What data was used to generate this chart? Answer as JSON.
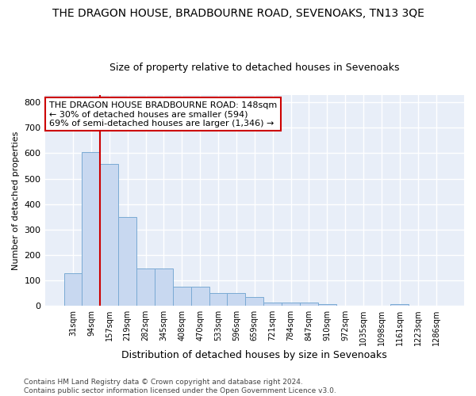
{
  "title": "THE DRAGON HOUSE, BRADBOURNE ROAD, SEVENOAKS, TN13 3QE",
  "subtitle": "Size of property relative to detached houses in Sevenoaks",
  "xlabel": "Distribution of detached houses by size in Sevenoaks",
  "ylabel": "Number of detached properties",
  "bar_color": "#c8d8f0",
  "bar_edge_color": "#7aaad4",
  "categories": [
    "31sqm",
    "94sqm",
    "157sqm",
    "219sqm",
    "282sqm",
    "345sqm",
    "408sqm",
    "470sqm",
    "533sqm",
    "596sqm",
    "659sqm",
    "721sqm",
    "784sqm",
    "847sqm",
    "910sqm",
    "972sqm",
    "1035sqm",
    "1098sqm",
    "1161sqm",
    "1223sqm",
    "1286sqm"
  ],
  "values": [
    128,
    603,
    557,
    350,
    148,
    148,
    75,
    75,
    50,
    50,
    33,
    14,
    14,
    12,
    8,
    0,
    0,
    0,
    8,
    0,
    0
  ],
  "ylim": [
    0,
    830
  ],
  "yticks": [
    0,
    100,
    200,
    300,
    400,
    500,
    600,
    700,
    800
  ],
  "annotation_text": "THE DRAGON HOUSE BRADBOURNE ROAD: 148sqm\n← 30% of detached houses are smaller (594)\n69% of semi-detached houses are larger (1,346) →",
  "vline_color": "#cc0000",
  "annotation_box_color": "#ffffff",
  "annotation_box_edge": "#cc0000",
  "footer": "Contains HM Land Registry data © Crown copyright and database right 2024.\nContains public sector information licensed under the Open Government Licence v3.0.",
  "plot_bg_color": "#e8eef8",
  "fig_bg_color": "#ffffff",
  "grid_color": "#ffffff",
  "title_fontsize": 10,
  "subtitle_fontsize": 9
}
